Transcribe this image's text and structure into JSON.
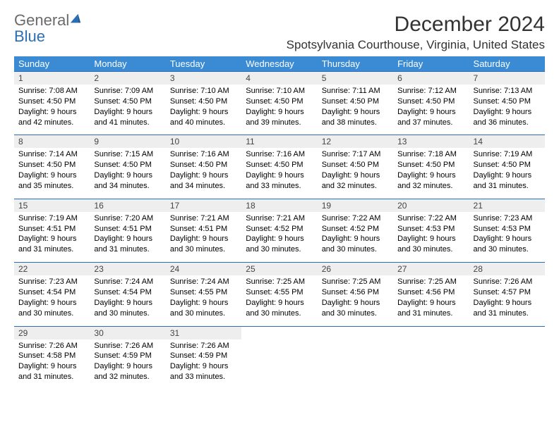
{
  "logo": {
    "text1": "General",
    "text2": "Blue"
  },
  "title": "December 2024",
  "location": "Spotsylvania Courthouse, Virginia, United States",
  "colors": {
    "header_bg": "#3b8bd4",
    "header_text": "#ffffff",
    "divider": "#2a6fb5",
    "daynum_bg": "#eeeeee",
    "logo_gray": "#6b6b6b",
    "logo_blue": "#2a6fb5"
  },
  "days_of_week": [
    "Sunday",
    "Monday",
    "Tuesday",
    "Wednesday",
    "Thursday",
    "Friday",
    "Saturday"
  ],
  "weeks": [
    [
      {
        "n": "1",
        "sr": "7:08 AM",
        "ss": "4:50 PM",
        "dl": "9 hours and 42 minutes."
      },
      {
        "n": "2",
        "sr": "7:09 AM",
        "ss": "4:50 PM",
        "dl": "9 hours and 41 minutes."
      },
      {
        "n": "3",
        "sr": "7:10 AM",
        "ss": "4:50 PM",
        "dl": "9 hours and 40 minutes."
      },
      {
        "n": "4",
        "sr": "7:10 AM",
        "ss": "4:50 PM",
        "dl": "9 hours and 39 minutes."
      },
      {
        "n": "5",
        "sr": "7:11 AM",
        "ss": "4:50 PM",
        "dl": "9 hours and 38 minutes."
      },
      {
        "n": "6",
        "sr": "7:12 AM",
        "ss": "4:50 PM",
        "dl": "9 hours and 37 minutes."
      },
      {
        "n": "7",
        "sr": "7:13 AM",
        "ss": "4:50 PM",
        "dl": "9 hours and 36 minutes."
      }
    ],
    [
      {
        "n": "8",
        "sr": "7:14 AM",
        "ss": "4:50 PM",
        "dl": "9 hours and 35 minutes."
      },
      {
        "n": "9",
        "sr": "7:15 AM",
        "ss": "4:50 PM",
        "dl": "9 hours and 34 minutes."
      },
      {
        "n": "10",
        "sr": "7:16 AM",
        "ss": "4:50 PM",
        "dl": "9 hours and 34 minutes."
      },
      {
        "n": "11",
        "sr": "7:16 AM",
        "ss": "4:50 PM",
        "dl": "9 hours and 33 minutes."
      },
      {
        "n": "12",
        "sr": "7:17 AM",
        "ss": "4:50 PM",
        "dl": "9 hours and 32 minutes."
      },
      {
        "n": "13",
        "sr": "7:18 AM",
        "ss": "4:50 PM",
        "dl": "9 hours and 32 minutes."
      },
      {
        "n": "14",
        "sr": "7:19 AM",
        "ss": "4:50 PM",
        "dl": "9 hours and 31 minutes."
      }
    ],
    [
      {
        "n": "15",
        "sr": "7:19 AM",
        "ss": "4:51 PM",
        "dl": "9 hours and 31 minutes."
      },
      {
        "n": "16",
        "sr": "7:20 AM",
        "ss": "4:51 PM",
        "dl": "9 hours and 31 minutes."
      },
      {
        "n": "17",
        "sr": "7:21 AM",
        "ss": "4:51 PM",
        "dl": "9 hours and 30 minutes."
      },
      {
        "n": "18",
        "sr": "7:21 AM",
        "ss": "4:52 PM",
        "dl": "9 hours and 30 minutes."
      },
      {
        "n": "19",
        "sr": "7:22 AM",
        "ss": "4:52 PM",
        "dl": "9 hours and 30 minutes."
      },
      {
        "n": "20",
        "sr": "7:22 AM",
        "ss": "4:53 PM",
        "dl": "9 hours and 30 minutes."
      },
      {
        "n": "21",
        "sr": "7:23 AM",
        "ss": "4:53 PM",
        "dl": "9 hours and 30 minutes."
      }
    ],
    [
      {
        "n": "22",
        "sr": "7:23 AM",
        "ss": "4:54 PM",
        "dl": "9 hours and 30 minutes."
      },
      {
        "n": "23",
        "sr": "7:24 AM",
        "ss": "4:54 PM",
        "dl": "9 hours and 30 minutes."
      },
      {
        "n": "24",
        "sr": "7:24 AM",
        "ss": "4:55 PM",
        "dl": "9 hours and 30 minutes."
      },
      {
        "n": "25",
        "sr": "7:25 AM",
        "ss": "4:55 PM",
        "dl": "9 hours and 30 minutes."
      },
      {
        "n": "26",
        "sr": "7:25 AM",
        "ss": "4:56 PM",
        "dl": "9 hours and 30 minutes."
      },
      {
        "n": "27",
        "sr": "7:25 AM",
        "ss": "4:56 PM",
        "dl": "9 hours and 31 minutes."
      },
      {
        "n": "28",
        "sr": "7:26 AM",
        "ss": "4:57 PM",
        "dl": "9 hours and 31 minutes."
      }
    ],
    [
      {
        "n": "29",
        "sr": "7:26 AM",
        "ss": "4:58 PM",
        "dl": "9 hours and 31 minutes."
      },
      {
        "n": "30",
        "sr": "7:26 AM",
        "ss": "4:59 PM",
        "dl": "9 hours and 32 minutes."
      },
      {
        "n": "31",
        "sr": "7:26 AM",
        "ss": "4:59 PM",
        "dl": "9 hours and 33 minutes."
      },
      null,
      null,
      null,
      null
    ]
  ],
  "labels": {
    "sunrise": "Sunrise: ",
    "sunset": "Sunset: ",
    "daylight": "Daylight: "
  }
}
